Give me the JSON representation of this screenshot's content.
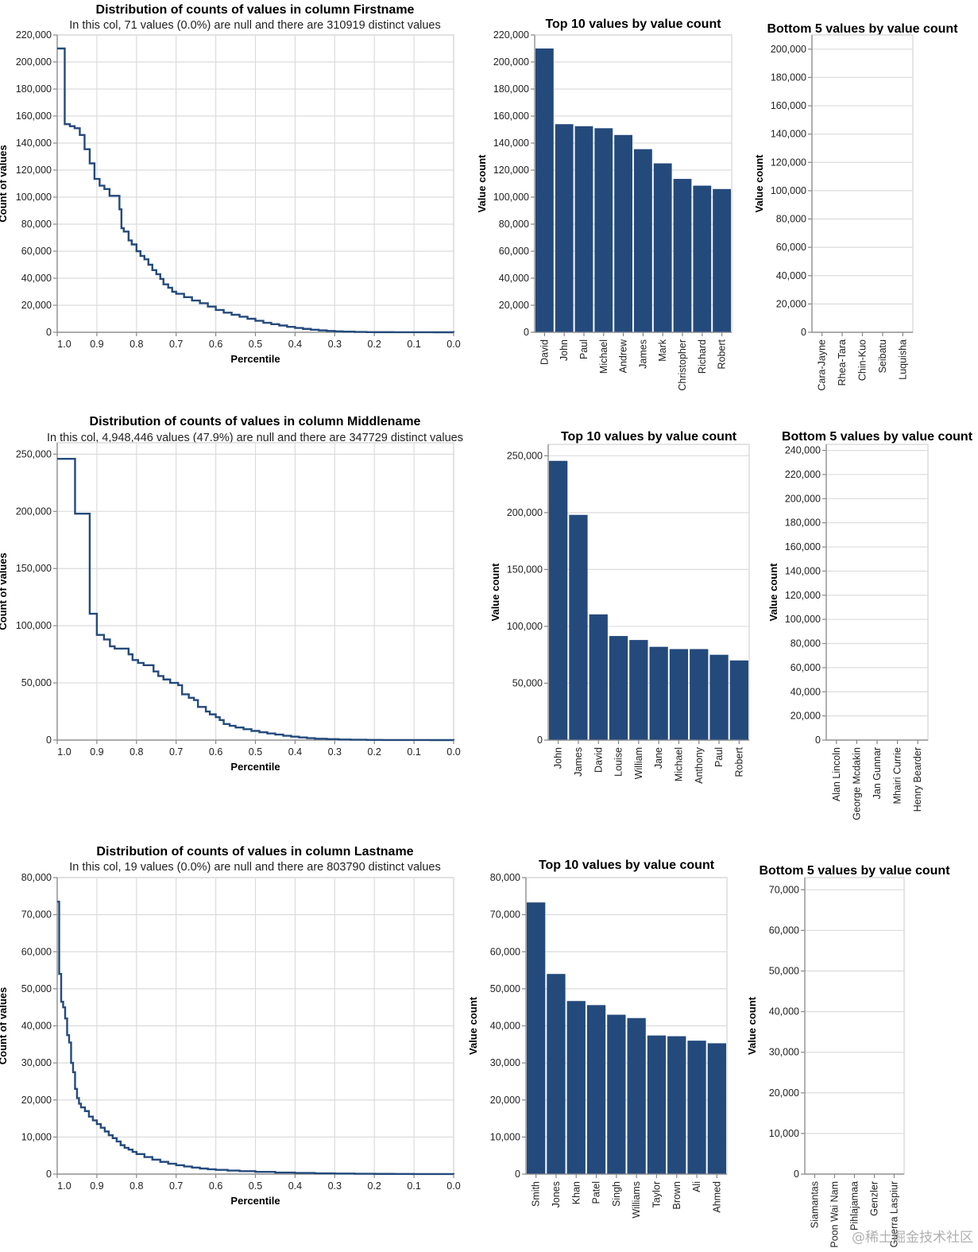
{
  "watermark": "@稀土掘金技术社区",
  "colors": {
    "mark": "#244a7c",
    "grid": "#dcdcdc",
    "axis": "#888888"
  },
  "chart_data": [
    {
      "id": "firstname-distribution",
      "type": "line",
      "interpolation": "step",
      "title": "Distribution of counts of values in column Firstname",
      "subtitle": "In this col, 71 values (0.0%) are null and there are 310919 distinct values",
      "xlabel": "Percentile",
      "ylabel": "Count of values",
      "xlim": [
        1.0,
        0.0
      ],
      "ylim": [
        0,
        220000
      ],
      "xticks": [
        1.0,
        0.9,
        0.8,
        0.7,
        0.6,
        0.5,
        0.4,
        0.3,
        0.2,
        0.1,
        0.0
      ],
      "xtick_labels": [
        "1.0",
        "0.9",
        "0.8",
        "0.7",
        "0.6",
        "0.5",
        "0.4",
        "0.3",
        "0.2",
        "0.1",
        "0.0"
      ],
      "yticks": [
        0,
        20000,
        40000,
        60000,
        80000,
        100000,
        120000,
        140000,
        160000,
        180000,
        200000,
        220000
      ],
      "ytick_labels": [
        "0",
        "20,000",
        "40,000",
        "60,000",
        "80,000",
        "100,000",
        "120,000",
        "140,000",
        "160,000",
        "180,000",
        "200,000",
        "220,000"
      ],
      "grid": true,
      "x": [
        1.0,
        0.981,
        0.981,
        0.968,
        0.956,
        0.943,
        0.931,
        0.918,
        0.906,
        0.893,
        0.881,
        0.868,
        0.856,
        0.843,
        0.838,
        0.832,
        0.82,
        0.812,
        0.8,
        0.79,
        0.78,
        0.77,
        0.76,
        0.75,
        0.74,
        0.732,
        0.72,
        0.71,
        0.7,
        0.68,
        0.66,
        0.64,
        0.62,
        0.6,
        0.58,
        0.56,
        0.54,
        0.52,
        0.5,
        0.48,
        0.46,
        0.44,
        0.42,
        0.4,
        0.38,
        0.36,
        0.34,
        0.32,
        0.3,
        0.28,
        0.25,
        0.22,
        0.2,
        0.15,
        0.1,
        0.05,
        0.0
      ],
      "y": [
        210000,
        210000,
        154000,
        152500,
        151000,
        146000,
        135500,
        125000,
        113500,
        108500,
        106000,
        101000,
        101000,
        91000,
        77000,
        74500,
        68000,
        65000,
        60000,
        56500,
        54000,
        50000,
        46000,
        43000,
        39500,
        35500,
        33000,
        30000,
        28500,
        26000,
        23500,
        21500,
        19000,
        16500,
        14500,
        13000,
        11500,
        10000,
        8500,
        7000,
        6000,
        5000,
        4000,
        3200,
        2500,
        1900,
        1400,
        1000,
        700,
        450,
        250,
        120,
        80,
        30,
        10,
        3,
        1
      ]
    },
    {
      "id": "firstname-top10",
      "type": "bar",
      "title": "Top 10 values by value count",
      "xlabel": "",
      "ylabel": "Value count",
      "categories": [
        "David",
        "John",
        "Paul",
        "Michael",
        "Andrew",
        "James",
        "Mark",
        "Christopher",
        "Richard",
        "Robert"
      ],
      "values": [
        210000,
        154000,
        152500,
        151000,
        146000,
        135500,
        125000,
        113500,
        108500,
        106000
      ],
      "ylim": [
        0,
        220000
      ],
      "yticks": [
        0,
        20000,
        40000,
        60000,
        80000,
        100000,
        120000,
        140000,
        160000,
        180000,
        200000,
        220000
      ],
      "ytick_labels": [
        "0",
        "20,000",
        "40,000",
        "60,000",
        "80,000",
        "100,000",
        "120,000",
        "140,000",
        "160,000",
        "180,000",
        "200,000",
        "220,000"
      ],
      "grid": true
    },
    {
      "id": "firstname-bottom5",
      "type": "bar",
      "title": "Bottom 5 values by value count",
      "xlabel": "",
      "ylabel": "Value count",
      "categories": [
        "Cara-Jayne",
        "Rhea-Tara",
        "Chin-Kuo",
        "Seibatu",
        "Luquisha"
      ],
      "values": [
        1,
        1,
        1,
        1,
        1
      ],
      "ylim": [
        0,
        210000
      ],
      "yticks": [
        0,
        20000,
        40000,
        60000,
        80000,
        100000,
        120000,
        140000,
        160000,
        180000,
        200000
      ],
      "ytick_labels": [
        "0",
        "20,000",
        "40,000",
        "60,000",
        "80,000",
        "100,000",
        "120,000",
        "140,000",
        "160,000",
        "180,000",
        "200,000"
      ],
      "grid": true
    },
    {
      "id": "middlename-distribution",
      "type": "line",
      "interpolation": "step",
      "title": "Distribution of counts of values in column Middlename",
      "subtitle": "In this col, 4,948,446 values (47.9%) are null and there are 347729 distinct values",
      "xlabel": "Percentile",
      "ylabel": "Count of values",
      "xlim": [
        1.0,
        0.0
      ],
      "ylim": [
        0,
        260000
      ],
      "xticks": [
        1.0,
        0.9,
        0.8,
        0.7,
        0.6,
        0.5,
        0.4,
        0.3,
        0.2,
        0.1,
        0.0
      ],
      "xtick_labels": [
        "1.0",
        "0.9",
        "0.8",
        "0.7",
        "0.6",
        "0.5",
        "0.4",
        "0.3",
        "0.2",
        "0.1",
        "0.0"
      ],
      "yticks": [
        0,
        50000,
        100000,
        150000,
        200000,
        250000
      ],
      "ytick_labels": [
        "0",
        "50,000",
        "100,000",
        "150,000",
        "200,000",
        "250,000"
      ],
      "grid": true,
      "x": [
        1.0,
        0.955,
        0.955,
        0.918,
        0.9,
        0.882,
        0.867,
        0.855,
        0.82,
        0.81,
        0.796,
        0.782,
        0.757,
        0.745,
        0.732,
        0.715,
        0.695,
        0.685,
        0.668,
        0.655,
        0.645,
        0.625,
        0.615,
        0.6,
        0.59,
        0.58,
        0.565,
        0.55,
        0.53,
        0.51,
        0.49,
        0.47,
        0.45,
        0.43,
        0.41,
        0.39,
        0.37,
        0.35,
        0.32,
        0.29,
        0.26,
        0.22,
        0.18,
        0.12,
        0.06,
        0.0
      ],
      "y": [
        246000,
        246000,
        198000,
        110500,
        92000,
        88000,
        82000,
        80000,
        75000,
        70000,
        67500,
        65500,
        60000,
        56000,
        53000,
        50000,
        48000,
        40000,
        37000,
        35000,
        29000,
        25000,
        22500,
        20000,
        17500,
        14000,
        12500,
        11000,
        9500,
        8000,
        6800,
        5800,
        4800,
        3800,
        3000,
        2300,
        1700,
        1200,
        800,
        500,
        300,
        150,
        70,
        20,
        5,
        1
      ]
    },
    {
      "id": "middlename-top10",
      "type": "bar",
      "title": "Top 10 values by value count",
      "xlabel": "",
      "ylabel": "Value count",
      "categories": [
        "John",
        "James",
        "David",
        "Louise",
        "William",
        "Jane",
        "Michael",
        "Anthony",
        "Paul",
        "Robert"
      ],
      "values": [
        245500,
        198000,
        110500,
        91500,
        88000,
        82000,
        80000,
        80000,
        75000,
        70000
      ],
      "ylim": [
        0,
        260000
      ],
      "yticks": [
        0,
        50000,
        100000,
        150000,
        200000,
        250000
      ],
      "ytick_labels": [
        "0",
        "50,000",
        "100,000",
        "150,000",
        "200,000",
        "250,000"
      ],
      "grid": true
    },
    {
      "id": "middlename-bottom5",
      "type": "bar",
      "title": "Bottom 5 values by value count",
      "xlabel": "",
      "ylabel": "Value count",
      "categories": [
        "Alan Lincoln",
        "George Mcdakin",
        "Jan Gunnar",
        "Mhairi Currie",
        "Henry Bearder"
      ],
      "values": [
        1,
        1,
        1,
        1,
        1
      ],
      "ylim": [
        0,
        245000
      ],
      "yticks": [
        0,
        20000,
        40000,
        60000,
        80000,
        100000,
        120000,
        140000,
        160000,
        180000,
        200000,
        220000,
        240000
      ],
      "ytick_labels": [
        "0",
        "20,000",
        "40,000",
        "60,000",
        "80,000",
        "100,000",
        "120,000",
        "140,000",
        "160,000",
        "180,000",
        "200,000",
        "220,000",
        "240,000"
      ],
      "grid": true
    },
    {
      "id": "lastname-distribution",
      "type": "line",
      "interpolation": "step",
      "title": "Distribution of counts of values in column Lastname",
      "subtitle": "In this col, 19 values (0.0%) are null and there are 803790 distinct values",
      "xlabel": "Percentile",
      "ylabel": "Count of values",
      "xlim": [
        1.0,
        0.0
      ],
      "ylim": [
        0,
        80000
      ],
      "xticks": [
        1.0,
        0.9,
        0.8,
        0.7,
        0.6,
        0.5,
        0.4,
        0.3,
        0.2,
        0.1,
        0.0
      ],
      "xtick_labels": [
        "1.0",
        "0.9",
        "0.8",
        "0.7",
        "0.6",
        "0.5",
        "0.4",
        "0.3",
        "0.2",
        "0.1",
        "0.0"
      ],
      "yticks": [
        0,
        10000,
        20000,
        30000,
        40000,
        50000,
        60000,
        70000,
        80000
      ],
      "ytick_labels": [
        "0",
        "10,000",
        "20,000",
        "30,000",
        "40,000",
        "50,000",
        "60,000",
        "70,000",
        "80,000"
      ],
      "grid": true,
      "x": [
        1.0,
        0.995,
        0.995,
        0.99,
        0.985,
        0.98,
        0.975,
        0.97,
        0.965,
        0.96,
        0.955,
        0.95,
        0.945,
        0.94,
        0.93,
        0.92,
        0.91,
        0.9,
        0.89,
        0.88,
        0.87,
        0.86,
        0.85,
        0.84,
        0.83,
        0.82,
        0.81,
        0.8,
        0.78,
        0.76,
        0.74,
        0.72,
        0.7,
        0.68,
        0.66,
        0.64,
        0.62,
        0.6,
        0.57,
        0.54,
        0.5,
        0.45,
        0.4,
        0.35,
        0.3,
        0.25,
        0.2,
        0.15,
        0.1,
        0.05,
        0.0
      ],
      "y": [
        73500,
        73500,
        54000,
        46500,
        45000,
        42000,
        37500,
        35500,
        30000,
        27500,
        23000,
        20500,
        19000,
        18000,
        17000,
        15500,
        14500,
        13500,
        12500,
        11500,
        10500,
        9700,
        8800,
        7800,
        7100,
        6600,
        6000,
        5400,
        4600,
        3900,
        3300,
        2800,
        2400,
        2050,
        1750,
        1500,
        1300,
        1150,
        950,
        800,
        600,
        420,
        300,
        200,
        140,
        90,
        55,
        30,
        15,
        5,
        1
      ]
    },
    {
      "id": "lastname-top10",
      "type": "bar",
      "title": "Top 10 values by value count",
      "xlabel": "",
      "ylabel": "Value count",
      "categories": [
        "Smith",
        "Jones",
        "Khan",
        "Patel",
        "Singh",
        "Williams",
        "Taylor",
        "Brown",
        "Ali",
        "Ahmed"
      ],
      "values": [
        73300,
        54000,
        46700,
        45600,
        43000,
        42100,
        37400,
        37200,
        36000,
        35300
      ],
      "ylim": [
        0,
        80000
      ],
      "yticks": [
        0,
        10000,
        20000,
        30000,
        40000,
        50000,
        60000,
        70000,
        80000
      ],
      "ytick_labels": [
        "0",
        "10,000",
        "20,000",
        "30,000",
        "40,000",
        "50,000",
        "60,000",
        "70,000",
        "80,000"
      ],
      "grid": true
    },
    {
      "id": "lastname-bottom5",
      "type": "bar",
      "title": "Bottom 5 values by value count",
      "xlabel": "",
      "ylabel": "Value count",
      "categories": [
        "Siamantas",
        "Poon Wai Nam",
        "Pihlajamaa",
        "Genzler",
        "Guerra Laspiur"
      ],
      "values": [
        1,
        1,
        1,
        1,
        1
      ],
      "ylim": [
        0,
        73000
      ],
      "yticks": [
        0,
        10000,
        20000,
        30000,
        40000,
        50000,
        60000,
        70000
      ],
      "ytick_labels": [
        "0",
        "10,000",
        "20,000",
        "30,000",
        "40,000",
        "50,000",
        "60,000",
        "70,000"
      ],
      "grid": true
    }
  ]
}
